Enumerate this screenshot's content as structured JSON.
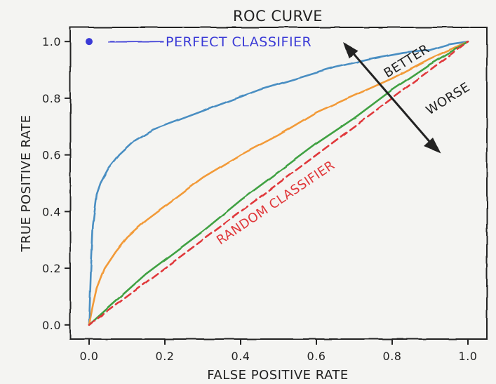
{
  "chart_data": {
    "type": "line",
    "title": "ROC CURVE",
    "xlabel": "FALSE POSITIVE RATE",
    "ylabel": "TRUE POSITIVE RATE",
    "xlim": [
      -0.05,
      1.05
    ],
    "ylim": [
      -0.05,
      1.05
    ],
    "xticks": [
      0.0,
      0.2,
      0.4,
      0.6,
      0.8,
      1.0
    ],
    "yticks": [
      0.0,
      0.2,
      0.4,
      0.6,
      0.8,
      1.0
    ],
    "xtick_labels": [
      "0.0",
      "0.2",
      "0.4",
      "0.6",
      "0.8",
      "1.0"
    ],
    "ytick_labels": [
      "0.0",
      "0.2",
      "0.4",
      "0.6",
      "0.8",
      "1.0"
    ],
    "grid": false,
    "series": [
      {
        "color": "#4a8ec2",
        "style": "solid",
        "x": [
          0.0,
          0.005,
          0.01,
          0.02,
          0.03,
          0.05,
          0.08,
          0.12,
          0.17,
          0.25,
          0.35,
          0.45,
          0.55,
          0.65,
          0.75,
          0.83,
          0.9,
          0.95,
          1.0
        ],
        "y": [
          0.0,
          0.2,
          0.35,
          0.46,
          0.5,
          0.55,
          0.6,
          0.65,
          0.69,
          0.73,
          0.78,
          0.83,
          0.87,
          0.91,
          0.94,
          0.96,
          0.97,
          0.99,
          1.0
        ]
      },
      {
        "color": "#f29a38",
        "style": "solid",
        "x": [
          0.0,
          0.01,
          0.02,
          0.04,
          0.07,
          0.1,
          0.15,
          0.2,
          0.25,
          0.3,
          0.4,
          0.5,
          0.6,
          0.7,
          0.8,
          0.9,
          1.0
        ],
        "y": [
          0.0,
          0.07,
          0.13,
          0.2,
          0.26,
          0.31,
          0.37,
          0.42,
          0.47,
          0.52,
          0.6,
          0.67,
          0.75,
          0.81,
          0.87,
          0.94,
          1.0
        ]
      },
      {
        "color": "#3fa142",
        "style": "solid",
        "x": [
          0.0,
          0.05,
          0.1,
          0.15,
          0.2,
          0.3,
          0.4,
          0.5,
          0.6,
          0.7,
          0.8,
          0.9,
          1.0
        ],
        "y": [
          0.0,
          0.06,
          0.12,
          0.18,
          0.23,
          0.33,
          0.44,
          0.54,
          0.64,
          0.73,
          0.83,
          0.92,
          1.0
        ]
      },
      {
        "name": "RANDOM CLASSIFIER",
        "color": "#e0373a",
        "style": "dashed",
        "x": [
          0.0,
          1.0
        ],
        "y": [
          0.0,
          1.0
        ]
      }
    ],
    "point": {
      "x": 0.0,
      "y": 1.0,
      "color": "#3a3ad6"
    },
    "annotations": [
      {
        "text": "PERFECT CLASSIFIER",
        "color": "#3a3ad6"
      },
      {
        "text": "BETTER",
        "color": "#222222"
      },
      {
        "text": "WORSE",
        "color": "#222222"
      },
      {
        "text": "RANDOM CLASSIFIER",
        "color": "#e0373a"
      }
    ]
  }
}
